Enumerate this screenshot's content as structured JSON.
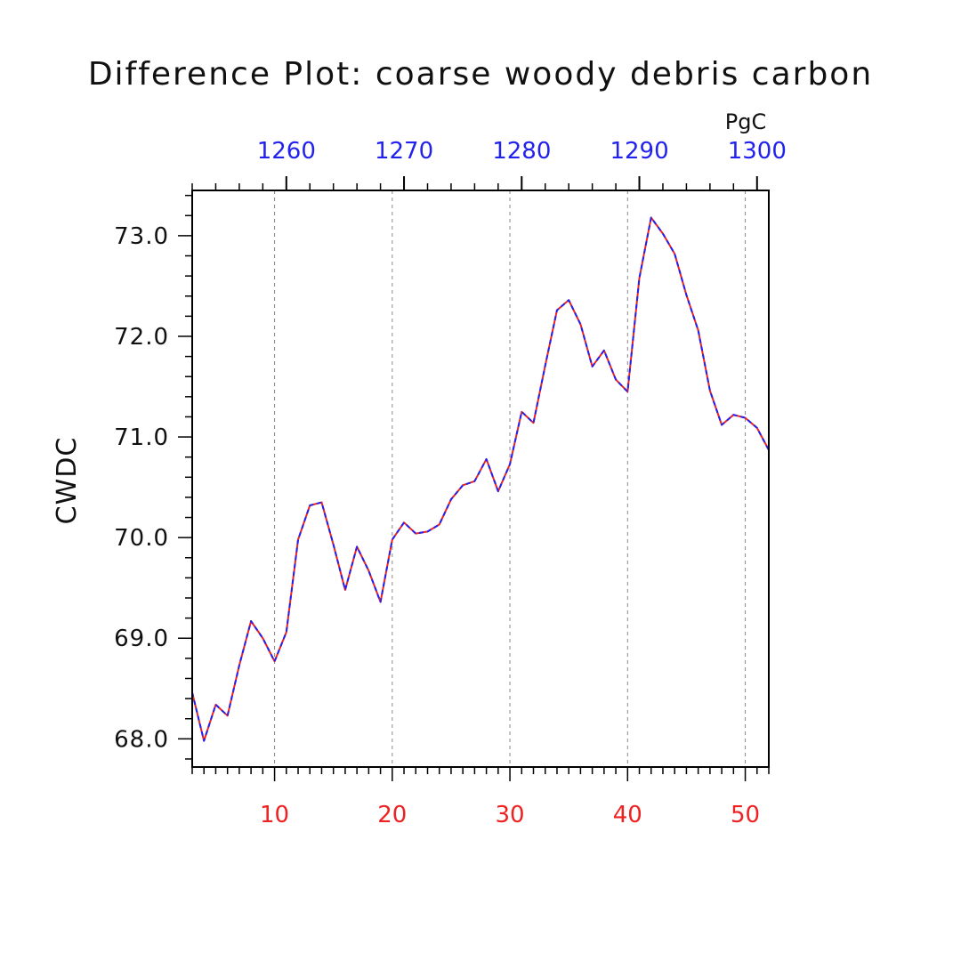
{
  "chart_data": {
    "type": "line",
    "title": "Difference Plot: coarse woody debris carbon",
    "ylabel": "CWDC",
    "top_unit_label": "PgC",
    "xlim": [
      3,
      52
    ],
    "ylim": [
      67.72,
      73.45
    ],
    "x_ticks": [
      10,
      20,
      30,
      40,
      50
    ],
    "y_ticks": [
      "68.0",
      "69.0",
      "70.0",
      "71.0",
      "72.0",
      "73.0"
    ],
    "top_axis": {
      "ticks": [
        "1260",
        "1270",
        "1280",
        "1290",
        "1300"
      ],
      "range": [
        1252,
        1301
      ]
    },
    "grid": "vertical dashed",
    "x": [
      3,
      4,
      5,
      6,
      7,
      8,
      9,
      10,
      11,
      12,
      13,
      14,
      15,
      16,
      17,
      18,
      19,
      20,
      21,
      22,
      23,
      24,
      25,
      26,
      27,
      28,
      29,
      30,
      31,
      32,
      33,
      34,
      35,
      36,
      37,
      38,
      39,
      40,
      41,
      42,
      43,
      44,
      45,
      46,
      47,
      48,
      49,
      50,
      51,
      52
    ],
    "series": [
      {
        "color": "#ee2222",
        "values": [
          68.46,
          67.98,
          68.34,
          68.23,
          68.73,
          69.17,
          69.0,
          68.77,
          69.06,
          69.98,
          70.32,
          70.35,
          69.93,
          69.48,
          69.91,
          69.67,
          69.36,
          69.98,
          70.15,
          70.04,
          70.06,
          70.13,
          70.38,
          70.52,
          70.56,
          70.78,
          70.46,
          70.73,
          71.25,
          71.14,
          71.71,
          72.26,
          72.36,
          72.12,
          71.7,
          71.86,
          71.57,
          71.45,
          72.58,
          73.18,
          73.02,
          72.82,
          72.41,
          72.06,
          71.46,
          71.12,
          71.22,
          71.19,
          71.09,
          70.87
        ]
      },
      {
        "color": "#2222ee",
        "values": [
          68.46,
          67.98,
          68.34,
          68.23,
          68.73,
          69.17,
          69.0,
          68.77,
          69.06,
          69.98,
          70.32,
          70.35,
          69.93,
          69.48,
          69.91,
          69.67,
          69.36,
          69.98,
          70.15,
          70.04,
          70.06,
          70.13,
          70.38,
          70.52,
          70.56,
          70.78,
          70.46,
          70.73,
          71.25,
          71.14,
          71.71,
          72.26,
          72.36,
          72.12,
          71.7,
          71.86,
          71.57,
          71.45,
          72.58,
          73.18,
          73.02,
          72.82,
          72.41,
          72.06,
          71.46,
          71.12,
          71.22,
          71.19,
          71.09,
          70.87
        ]
      }
    ]
  }
}
